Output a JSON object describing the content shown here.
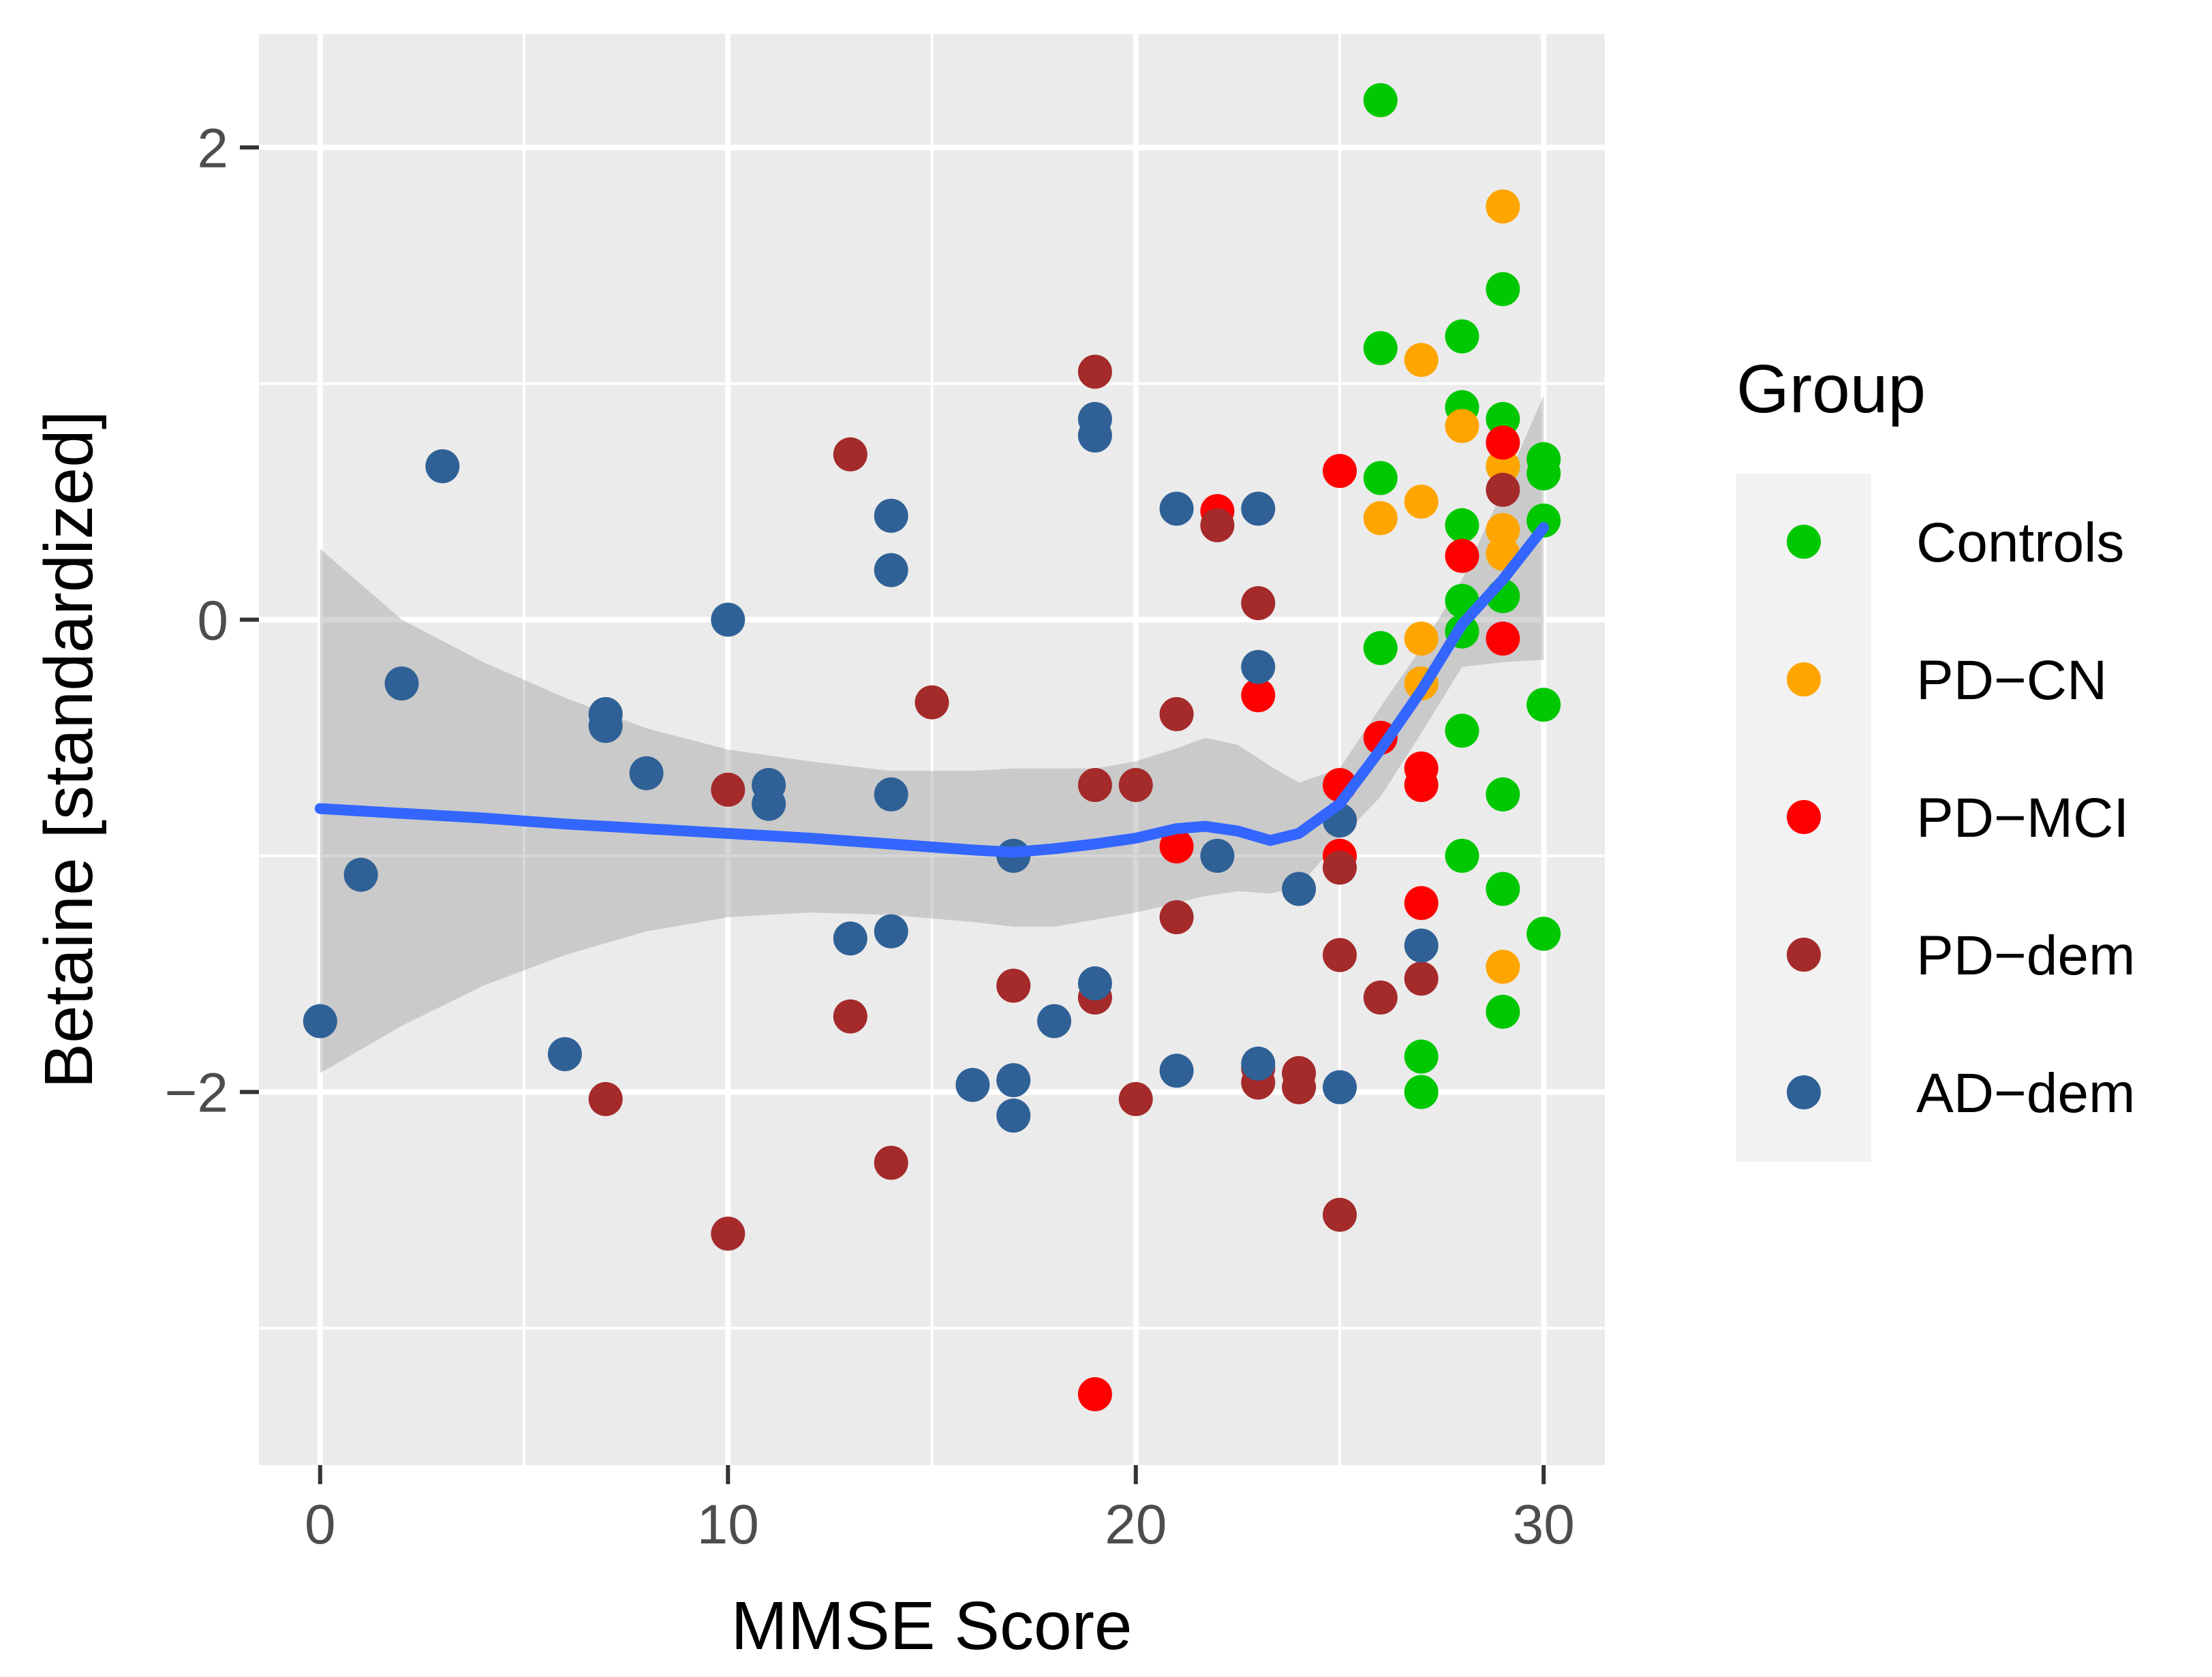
{
  "chart_data": {
    "type": "scatter",
    "title": "",
    "xlabel": "MMSE Score",
    "ylabel": "Betaine [standardized]",
    "xlim": [
      -1.5,
      31.5
    ],
    "ylim": [
      -3.58,
      2.48
    ],
    "x_ticks": [
      0,
      10,
      20,
      30
    ],
    "x_tick_labels": [
      "0",
      "10",
      "20",
      "30"
    ],
    "y_ticks": [
      -2,
      0,
      2
    ],
    "y_tick_labels": [
      "−2",
      "0",
      "2"
    ],
    "x_grid_minor": [
      5,
      15,
      25
    ],
    "y_grid_minor": [
      -3,
      -1,
      1
    ],
    "grid": true,
    "legend": {
      "title": "Group",
      "position": "right",
      "entries": [
        "Controls",
        "PD−CN",
        "PD−MCI",
        "PD−dem",
        "AD−dem"
      ]
    },
    "colors": {
      "Controls": "#00c800",
      "PD−CN": "#ffa500",
      "PD−MCI": "#ff0000",
      "PD−dem": "#a52a2a",
      "AD−dem": "#2f6196",
      "smooth_line": "#3366ff",
      "ci_band": "#999999",
      "panel": "#ebebeb",
      "grid": "#ffffff"
    },
    "series": [
      {
        "name": "Controls",
        "x": [
          26,
          26,
          26,
          26,
          27,
          27,
          28,
          28,
          28,
          28,
          28,
          28,
          28,
          29,
          29,
          29,
          29,
          29,
          29,
          29,
          30,
          30,
          30,
          30,
          30
        ],
        "y": [
          2.2,
          1.15,
          0.6,
          -0.12,
          -1.85,
          -2.0,
          1.2,
          0.9,
          0.4,
          0.08,
          -0.05,
          -0.47,
          -1.0,
          1.4,
          0.85,
          0.65,
          0.1,
          -0.74,
          -1.14,
          -1.66,
          0.68,
          0.62,
          0.42,
          -0.36,
          -1.33
        ]
      },
      {
        "name": "PD−CN",
        "x": [
          26,
          27,
          27,
          27,
          27,
          28,
          29,
          29,
          29,
          29,
          29
        ],
        "y": [
          0.43,
          1.1,
          0.5,
          -0.08,
          -0.27,
          0.82,
          1.75,
          0.65,
          0.38,
          0.28,
          -1.47
        ]
      },
      {
        "name": "PD−MCI",
        "x": [
          19,
          21,
          22,
          23,
          25,
          25,
          25,
          25,
          26,
          27,
          27,
          27,
          28,
          29,
          29
        ],
        "y": [
          -3.28,
          -0.96,
          0.46,
          -0.32,
          0.63,
          -0.7,
          -0.85,
          -1.0,
          -0.5,
          -0.63,
          -0.7,
          -1.2,
          0.27,
          0.75,
          -0.08
        ]
      },
      {
        "name": "PD−dem",
        "x": [
          7,
          10,
          10,
          13,
          13,
          14,
          15,
          17,
          19,
          19,
          19,
          20,
          20,
          21,
          21,
          22,
          23,
          23,
          23,
          24,
          24,
          25,
          25,
          25,
          26,
          27,
          29
        ],
        "y": [
          -2.03,
          -0.72,
          -2.6,
          0.7,
          -1.68,
          -2.3,
          -0.35,
          -1.55,
          1.05,
          -0.7,
          -1.6,
          -0.7,
          -2.03,
          -0.4,
          -1.26,
          0.4,
          0.07,
          -1.9,
          -1.96,
          -1.92,
          -1.98,
          -1.05,
          -1.42,
          -2.52,
          -1.6,
          -1.52,
          0.55
        ]
      },
      {
        "name": "AD−dem",
        "x": [
          0,
          1,
          2,
          3,
          6,
          7,
          7,
          8,
          10,
          11,
          11,
          13,
          14,
          14,
          14,
          14,
          16,
          17,
          17,
          17,
          18,
          19,
          19,
          19,
          21,
          21,
          22,
          23,
          23,
          23,
          24,
          25,
          25,
          27
        ],
        "y": [
          -1.7,
          -1.08,
          -0.27,
          0.65,
          -1.84,
          -0.4,
          -0.45,
          -0.65,
          0.0,
          -0.7,
          -0.78,
          -1.35,
          0.44,
          0.21,
          -0.74,
          -1.32,
          -1.97,
          -1.95,
          -2.1,
          -1.0,
          -1.7,
          0.85,
          0.78,
          -1.54,
          0.47,
          -1.91,
          -1.0,
          0.47,
          -0.2,
          -1.88,
          -1.14,
          -0.85,
          -1.98,
          -1.38
        ]
      }
    ],
    "smooth": {
      "method": "loess",
      "x": [
        0,
        2,
        4,
        6,
        8,
        10,
        12,
        14,
        16,
        17,
        18,
        19,
        20,
        21,
        21.7,
        22.5,
        23.3,
        24,
        25,
        26,
        27,
        28,
        29,
        30
      ],
      "y": [
        -0.8,
        -0.82,
        -0.84,
        -0.865,
        -0.885,
        -0.905,
        -0.925,
        -0.95,
        -0.975,
        -0.985,
        -0.97,
        -0.95,
        -0.925,
        -0.885,
        -0.875,
        -0.895,
        -0.935,
        -0.905,
        -0.78,
        -0.55,
        -0.3,
        -0.02,
        0.17,
        0.39
      ],
      "upper": [
        0.3,
        0.0,
        -0.18,
        -0.33,
        -0.46,
        -0.55,
        -0.6,
        -0.64,
        -0.64,
        -0.63,
        -0.63,
        -0.63,
        -0.6,
        -0.545,
        -0.5,
        -0.53,
        -0.62,
        -0.69,
        -0.63,
        -0.37,
        -0.12,
        0.17,
        0.55,
        0.95
      ],
      "lower": [
        -1.92,
        -1.72,
        -1.55,
        -1.42,
        -1.32,
        -1.26,
        -1.24,
        -1.25,
        -1.28,
        -1.3,
        -1.3,
        -1.27,
        -1.24,
        -1.2,
        -1.17,
        -1.15,
        -1.16,
        -1.13,
        -0.93,
        -0.75,
        -0.48,
        -0.2,
        -0.18,
        -0.17
      ]
    }
  }
}
